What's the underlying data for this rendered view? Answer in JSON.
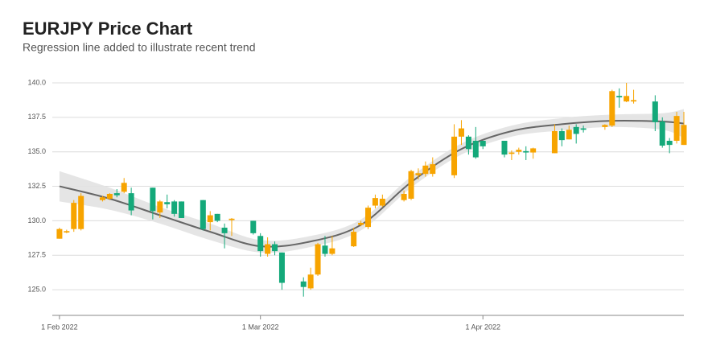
{
  "chart_data": {
    "type": "candlestick",
    "title": "EURJPY Price Chart",
    "subtitle": "Regression line added to illustrate recent trend",
    "x": [
      "2022-02-01",
      "2022-02-02",
      "2022-02-03",
      "2022-02-04",
      "2022-02-07",
      "2022-02-08",
      "2022-02-09",
      "2022-02-10",
      "2022-02-11",
      "2022-02-14",
      "2022-02-15",
      "2022-02-16",
      "2022-02-17",
      "2022-02-18",
      "2022-02-21",
      "2022-02-22",
      "2022-02-23",
      "2022-02-24",
      "2022-02-25",
      "2022-02-28",
      "2022-03-01",
      "2022-03-02",
      "2022-03-03",
      "2022-03-04",
      "2022-03-07",
      "2022-03-08",
      "2022-03-09",
      "2022-03-10",
      "2022-03-11",
      "2022-03-14",
      "2022-03-15",
      "2022-03-16",
      "2022-03-17",
      "2022-03-18",
      "2022-03-21",
      "2022-03-22",
      "2022-03-23",
      "2022-03-24",
      "2022-03-25",
      "2022-03-28",
      "2022-03-29",
      "2022-03-30",
      "2022-03-31",
      "2022-04-01",
      "2022-04-04",
      "2022-04-05",
      "2022-04-06",
      "2022-04-07",
      "2022-04-08",
      "2022-04-11",
      "2022-04-12",
      "2022-04-13",
      "2022-04-14",
      "2022-04-15",
      "2022-04-18",
      "2022-04-19",
      "2022-04-20",
      "2022-04-21",
      "2022-04-22",
      "2022-04-25",
      "2022-04-26",
      "2022-04-27",
      "2022-04-28",
      "2022-04-29"
    ],
    "open": [
      128.7,
      129.15,
      129.4,
      129.4,
      131.5,
      131.6,
      132.0,
      132.1,
      132.0,
      132.4,
      130.6,
      131.35,
      131.4,
      131.4,
      131.5,
      129.9,
      130.5,
      129.5,
      130.05,
      130.0,
      128.9,
      127.6,
      128.3,
      127.7,
      125.6,
      125.1,
      126.1,
      128.2,
      127.6,
      128.15,
      129.7,
      129.55,
      131.1,
      131.1,
      131.5,
      131.6,
      133.3,
      133.4,
      133.4,
      133.3,
      136.1,
      136.1,
      135.8,
      135.8,
      135.8,
      134.85,
      135.0,
      135.05,
      134.95,
      134.9,
      136.5,
      135.9,
      136.8,
      136.7,
      136.8,
      136.9,
      139.05,
      138.65,
      138.65,
      138.65,
      137.2,
      135.8,
      135.8,
      135.5
    ],
    "high": [
      129.5,
      129.35,
      131.5,
      132.0,
      131.8,
      132.0,
      132.3,
      133.1,
      132.4,
      132.4,
      131.5,
      131.9,
      131.5,
      131.4,
      131.5,
      130.7,
      130.5,
      129.8,
      130.2,
      130.0,
      129.1,
      128.8,
      128.5,
      127.7,
      125.9,
      126.6,
      128.4,
      128.9,
      128.9,
      129.5,
      130.0,
      131.1,
      131.9,
      131.9,
      132.2,
      133.7,
      133.8,
      134.3,
      134.6,
      137.0,
      137.3,
      136.2,
      136.8,
      135.8,
      135.8,
      135.1,
      135.3,
      135.4,
      135.3,
      137.0,
      136.7,
      136.9,
      137.0,
      136.9,
      137.0,
      139.5,
      139.6,
      140.0,
      139.5,
      139.1,
      137.5,
      136.0,
      137.9,
      137.9
    ],
    "low": [
      128.7,
      129.1,
      129.2,
      129.3,
      131.4,
      131.5,
      131.7,
      132.0,
      130.4,
      130.1,
      130.2,
      130.9,
      130.3,
      130.2,
      129.3,
      129.3,
      129.9,
      128.0,
      128.9,
      129.0,
      127.4,
      127.4,
      127.5,
      125.0,
      124.5,
      125.0,
      126.0,
      127.4,
      127.5,
      128.1,
      129.6,
      129.4,
      130.9,
      131.0,
      131.4,
      131.5,
      133.0,
      133.2,
      133.2,
      133.1,
      135.5,
      134.8,
      134.5,
      135.2,
      134.6,
      134.4,
      134.8,
      134.4,
      134.5,
      134.9,
      135.4,
      135.9,
      135.6,
      136.4,
      136.6,
      136.8,
      138.2,
      138.6,
      138.5,
      136.5,
      135.3,
      134.9,
      135.6,
      135.5
    ],
    "close": [
      129.4,
      129.25,
      131.3,
      131.8,
      131.7,
      131.95,
      131.85,
      132.75,
      130.75,
      130.7,
      131.4,
      131.2,
      130.5,
      130.2,
      129.4,
      130.4,
      130.0,
      129.1,
      130.15,
      129.1,
      127.8,
      128.3,
      127.8,
      125.5,
      125.2,
      126.1,
      128.3,
      127.6,
      128.0,
      129.2,
      129.85,
      130.95,
      131.65,
      131.6,
      131.95,
      133.6,
      133.45,
      134.0,
      134.1,
      136.1,
      136.7,
      135.2,
      134.6,
      135.4,
      134.8,
      134.95,
      135.15,
      134.95,
      135.25,
      136.5,
      135.85,
      136.6,
      136.3,
      136.6,
      136.95,
      139.4,
      138.95,
      139.05,
      138.75,
      137.15,
      135.45,
      135.5,
      137.6,
      136.95
    ],
    "up_color": "#f7a400",
    "down_color": "#14a97a",
    "trend": {
      "x": [
        "2022-02-01",
        "2022-02-08",
        "2022-02-15",
        "2022-02-22",
        "2022-03-01",
        "2022-03-08",
        "2022-03-15",
        "2022-03-22",
        "2022-03-29",
        "2022-04-05",
        "2022-04-12",
        "2022-04-19",
        "2022-04-26",
        "2022-04-29"
      ],
      "values": [
        132.5,
        131.6,
        130.4,
        129.2,
        128.15,
        128.5,
        129.7,
        132.8,
        135.2,
        136.5,
        137.0,
        137.25,
        137.2,
        137.05
      ],
      "upper": [
        133.6,
        132.4,
        131.0,
        129.8,
        128.6,
        128.9,
        130.1,
        133.2,
        135.6,
        136.9,
        137.45,
        137.7,
        137.8,
        138.1
      ],
      "lower": [
        131.4,
        130.8,
        129.8,
        128.6,
        127.7,
        128.1,
        129.3,
        132.4,
        134.8,
        136.1,
        136.55,
        136.8,
        136.6,
        136.0
      ],
      "color": "#666666",
      "band_color": "#e2e2e2"
    },
    "xlim": [
      "2022-01-31",
      "2022-04-29"
    ],
    "xticks": [
      {
        "value": "2022-02-01",
        "label": "1 Feb 2022"
      },
      {
        "value": "2022-03-01",
        "label": "1 Mar 2022"
      },
      {
        "value": "2022-04-01",
        "label": "1 Apr 2022"
      }
    ],
    "ylim": [
      123.14,
      141.05
    ],
    "yticks": [
      {
        "value": 125,
        "label": "125.0"
      },
      {
        "value": 127.5,
        "label": "127.5"
      },
      {
        "value": 130,
        "label": "130.0"
      },
      {
        "value": 132.5,
        "label": "132.5"
      },
      {
        "value": 135,
        "label": "135.0"
      },
      {
        "value": 137.5,
        "label": "137.5"
      },
      {
        "value": 140,
        "label": "140.0"
      }
    ],
    "grid": true
  }
}
